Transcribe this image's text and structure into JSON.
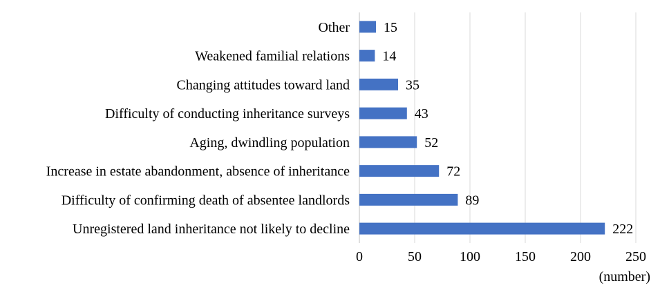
{
  "chart_data": {
    "type": "bar",
    "orientation": "horizontal",
    "categories": [
      "Other",
      "Weakened familial relations",
      "Changing attitudes toward land",
      "Difficulty of conducting inheritance surveys",
      "Aging, dwindling population",
      "Increase in estate abandonment, absence of inheritance",
      "Difficulty of confirming death of absentee landlords",
      "Unregistered land inheritance not likely to decline"
    ],
    "values": [
      15,
      14,
      35,
      43,
      52,
      72,
      89,
      222
    ],
    "xlim": [
      0,
      250
    ],
    "xticks": [
      "0",
      "50",
      "100",
      "150",
      "200",
      "250"
    ],
    "xlabel": "(number)",
    "ylabel": "",
    "title": "",
    "grid": "vertical",
    "legend": "none",
    "colors": {
      "bar": "#4472C4",
      "grid": "#D9D9D9",
      "axis": "#BFBFBF",
      "text": "#000000"
    }
  }
}
